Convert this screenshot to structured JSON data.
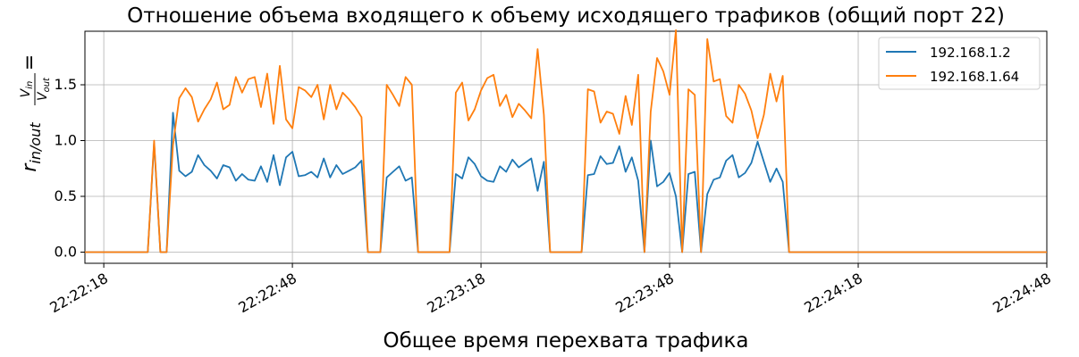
{
  "chart_data": {
    "type": "line",
    "title": "Отношение объема входящего к объему исходящего трафиков (общий порт 22)",
    "xlabel": "Общее время перехвата трафика",
    "ylabel": {
      "r_base": "r",
      "r_sub": "in/out",
      "eq": "=",
      "num_base": "V",
      "num_sub": "in",
      "den_base": "V",
      "den_sub": "out"
    },
    "x_unit": "seconds",
    "x_ticks": [
      "22:22:18",
      "22:22:48",
      "22:23:18",
      "22:23:48",
      "22:24:18",
      "22:24:48"
    ],
    "y_ticks": [
      "0.0",
      "0.5",
      "1.0",
      "1.5"
    ],
    "xlim": [
      "22:22:15",
      "22:24:48"
    ],
    "ylim": [
      -0.1,
      1.98
    ],
    "grid": true,
    "legend_position": "top-right",
    "series": [
      {
        "name": "192.168.1.2",
        "color": "#1f77b4",
        "points": [
          [
            "22:22:15",
            0
          ],
          [
            "22:22:25",
            0
          ],
          [
            "22:22:26",
            0.98
          ],
          [
            "22:22:27",
            0
          ],
          [
            "22:22:28",
            0
          ],
          [
            "22:22:29",
            1.25
          ],
          [
            "22:22:30",
            0.73
          ],
          [
            "22:22:31",
            0.68
          ],
          [
            "22:22:32",
            0.72
          ],
          [
            "22:22:33",
            0.87
          ],
          [
            "22:22:34",
            0.78
          ],
          [
            "22:22:35",
            0.73
          ],
          [
            "22:22:36",
            0.66
          ],
          [
            "22:22:37",
            0.78
          ],
          [
            "22:22:38",
            0.76
          ],
          [
            "22:22:39",
            0.64
          ],
          [
            "22:22:40",
            0.7
          ],
          [
            "22:22:41",
            0.65
          ],
          [
            "22:22:42",
            0.64
          ],
          [
            "22:22:43",
            0.77
          ],
          [
            "22:22:44",
            0.63
          ],
          [
            "22:22:45",
            0.87
          ],
          [
            "22:22:46",
            0.6
          ],
          [
            "22:22:47",
            0.85
          ],
          [
            "22:22:48",
            0.9
          ],
          [
            "22:22:49",
            0.68
          ],
          [
            "22:22:50",
            0.69
          ],
          [
            "22:22:51",
            0.72
          ],
          [
            "22:22:52",
            0.67
          ],
          [
            "22:22:53",
            0.84
          ],
          [
            "22:22:54",
            0.67
          ],
          [
            "22:22:55",
            0.78
          ],
          [
            "22:22:56",
            0.7
          ],
          [
            "22:22:57",
            0.73
          ],
          [
            "22:22:58",
            0.76
          ],
          [
            "22:22:59",
            0.82
          ],
          [
            "22:23:00",
            0
          ],
          [
            "22:23:02",
            0
          ],
          [
            "22:23:03",
            0.67
          ],
          [
            "22:23:04",
            0.72
          ],
          [
            "22:23:05",
            0.77
          ],
          [
            "22:23:06",
            0.64
          ],
          [
            "22:23:07",
            0.67
          ],
          [
            "22:23:08",
            0
          ],
          [
            "22:23:13",
            0
          ],
          [
            "22:23:14",
            0.7
          ],
          [
            "22:23:15",
            0.66
          ],
          [
            "22:23:16",
            0.85
          ],
          [
            "22:23:17",
            0.79
          ],
          [
            "22:23:18",
            0.68
          ],
          [
            "22:23:19",
            0.64
          ],
          [
            "22:23:20",
            0.63
          ],
          [
            "22:23:21",
            0.77
          ],
          [
            "22:23:22",
            0.72
          ],
          [
            "22:23:23",
            0.83
          ],
          [
            "22:23:24",
            0.76
          ],
          [
            "22:23:25",
            0.8
          ],
          [
            "22:23:26",
            0.84
          ],
          [
            "22:23:27",
            0.55
          ],
          [
            "22:23:28",
            0.81
          ],
          [
            "22:23:29",
            0
          ],
          [
            "22:23:34",
            0
          ],
          [
            "22:23:35",
            0.69
          ],
          [
            "22:23:36",
            0.7
          ],
          [
            "22:23:37",
            0.86
          ],
          [
            "22:23:38",
            0.79
          ],
          [
            "22:23:39",
            0.8
          ],
          [
            "22:23:40",
            0.95
          ],
          [
            "22:23:41",
            0.72
          ],
          [
            "22:23:42",
            0.85
          ],
          [
            "22:23:43",
            0.64
          ],
          [
            "22:23:44",
            0
          ],
          [
            "22:23:45",
            1.0
          ],
          [
            "22:23:46",
            0.59
          ],
          [
            "22:23:47",
            0.63
          ],
          [
            "22:23:48",
            0.71
          ],
          [
            "22:23:49",
            0.5
          ],
          [
            "22:23:50",
            0
          ],
          [
            "22:23:51",
            0.7
          ],
          [
            "22:23:52",
            0.72
          ],
          [
            "22:23:53",
            0
          ],
          [
            "22:23:54",
            0.52
          ],
          [
            "22:23:55",
            0.65
          ],
          [
            "22:23:56",
            0.67
          ],
          [
            "22:23:57",
            0.82
          ],
          [
            "22:23:58",
            0.87
          ],
          [
            "22:23:59",
            0.67
          ],
          [
            "22:24:00",
            0.71
          ],
          [
            "22:24:01",
            0.8
          ],
          [
            "22:24:02",
            0.99
          ],
          [
            "22:24:03",
            0.81
          ],
          [
            "22:24:04",
            0.63
          ],
          [
            "22:24:05",
            0.75
          ],
          [
            "22:24:06",
            0.63
          ],
          [
            "22:24:07",
            0
          ],
          [
            "22:24:48",
            0
          ]
        ]
      },
      {
        "name": "192.168.1.64",
        "color": "#ff7f0e",
        "points": [
          [
            "22:22:15",
            0
          ],
          [
            "22:22:25",
            0
          ],
          [
            "22:22:26",
            1.0
          ],
          [
            "22:22:27",
            0
          ],
          [
            "22:22:28",
            0
          ],
          [
            "22:22:29",
            0.96
          ],
          [
            "22:22:30",
            1.38
          ],
          [
            "22:22:31",
            1.47
          ],
          [
            "22:22:32",
            1.39
          ],
          [
            "22:22:33",
            1.17
          ],
          [
            "22:22:34",
            1.28
          ],
          [
            "22:22:35",
            1.37
          ],
          [
            "22:22:36",
            1.52
          ],
          [
            "22:22:37",
            1.28
          ],
          [
            "22:22:38",
            1.32
          ],
          [
            "22:22:39",
            1.57
          ],
          [
            "22:22:40",
            1.43
          ],
          [
            "22:22:41",
            1.55
          ],
          [
            "22:22:42",
            1.57
          ],
          [
            "22:22:43",
            1.3
          ],
          [
            "22:22:44",
            1.6
          ],
          [
            "22:22:45",
            1.15
          ],
          [
            "22:22:46",
            1.67
          ],
          [
            "22:22:47",
            1.19
          ],
          [
            "22:22:48",
            1.11
          ],
          [
            "22:22:49",
            1.48
          ],
          [
            "22:22:50",
            1.45
          ],
          [
            "22:22:51",
            1.39
          ],
          [
            "22:22:52",
            1.5
          ],
          [
            "22:22:53",
            1.19
          ],
          [
            "22:22:54",
            1.5
          ],
          [
            "22:22:55",
            1.28
          ],
          [
            "22:22:56",
            1.43
          ],
          [
            "22:22:57",
            1.37
          ],
          [
            "22:22:58",
            1.3
          ],
          [
            "22:22:59",
            1.21
          ],
          [
            "22:23:00",
            0
          ],
          [
            "22:23:02",
            0
          ],
          [
            "22:23:03",
            1.5
          ],
          [
            "22:23:04",
            1.41
          ],
          [
            "22:23:05",
            1.31
          ],
          [
            "22:23:06",
            1.57
          ],
          [
            "22:23:07",
            1.5
          ],
          [
            "22:23:08",
            0
          ],
          [
            "22:23:13",
            0
          ],
          [
            "22:23:14",
            1.43
          ],
          [
            "22:23:15",
            1.52
          ],
          [
            "22:23:16",
            1.18
          ],
          [
            "22:23:17",
            1.28
          ],
          [
            "22:23:18",
            1.45
          ],
          [
            "22:23:19",
            1.56
          ],
          [
            "22:23:20",
            1.59
          ],
          [
            "22:23:21",
            1.31
          ],
          [
            "22:23:22",
            1.41
          ],
          [
            "22:23:23",
            1.21
          ],
          [
            "22:23:24",
            1.33
          ],
          [
            "22:23:25",
            1.27
          ],
          [
            "22:23:26",
            1.2
          ],
          [
            "22:23:27",
            1.82
          ],
          [
            "22:23:28",
            1.23
          ],
          [
            "22:23:29",
            0
          ],
          [
            "22:23:34",
            0
          ],
          [
            "22:23:35",
            1.46
          ],
          [
            "22:23:36",
            1.44
          ],
          [
            "22:23:37",
            1.16
          ],
          [
            "22:23:38",
            1.26
          ],
          [
            "22:23:39",
            1.24
          ],
          [
            "22:23:40",
            1.06
          ],
          [
            "22:23:41",
            1.4
          ],
          [
            "22:23:42",
            1.14
          ],
          [
            "22:23:43",
            1.59
          ],
          [
            "22:23:44",
            0
          ],
          [
            "22:23:45",
            1.26
          ],
          [
            "22:23:46",
            1.74
          ],
          [
            "22:23:47",
            1.62
          ],
          [
            "22:23:48",
            1.41
          ],
          [
            "22:23:49",
            1.99
          ],
          [
            "22:23:50",
            0
          ],
          [
            "22:23:51",
            1.46
          ],
          [
            "22:23:52",
            1.41
          ],
          [
            "22:23:53",
            0
          ],
          [
            "22:23:54",
            1.91
          ],
          [
            "22:23:55",
            1.53
          ],
          [
            "22:23:56",
            1.55
          ],
          [
            "22:23:57",
            1.22
          ],
          [
            "22:23:58",
            1.16
          ],
          [
            "22:23:59",
            1.5
          ],
          [
            "22:24:00",
            1.42
          ],
          [
            "22:24:01",
            1.27
          ],
          [
            "22:24:02",
            1.02
          ],
          [
            "22:24:03",
            1.23
          ],
          [
            "22:24:04",
            1.6
          ],
          [
            "22:24:05",
            1.35
          ],
          [
            "22:24:06",
            1.58
          ],
          [
            "22:24:07",
            0
          ],
          [
            "22:24:48",
            0
          ]
        ]
      }
    ]
  }
}
